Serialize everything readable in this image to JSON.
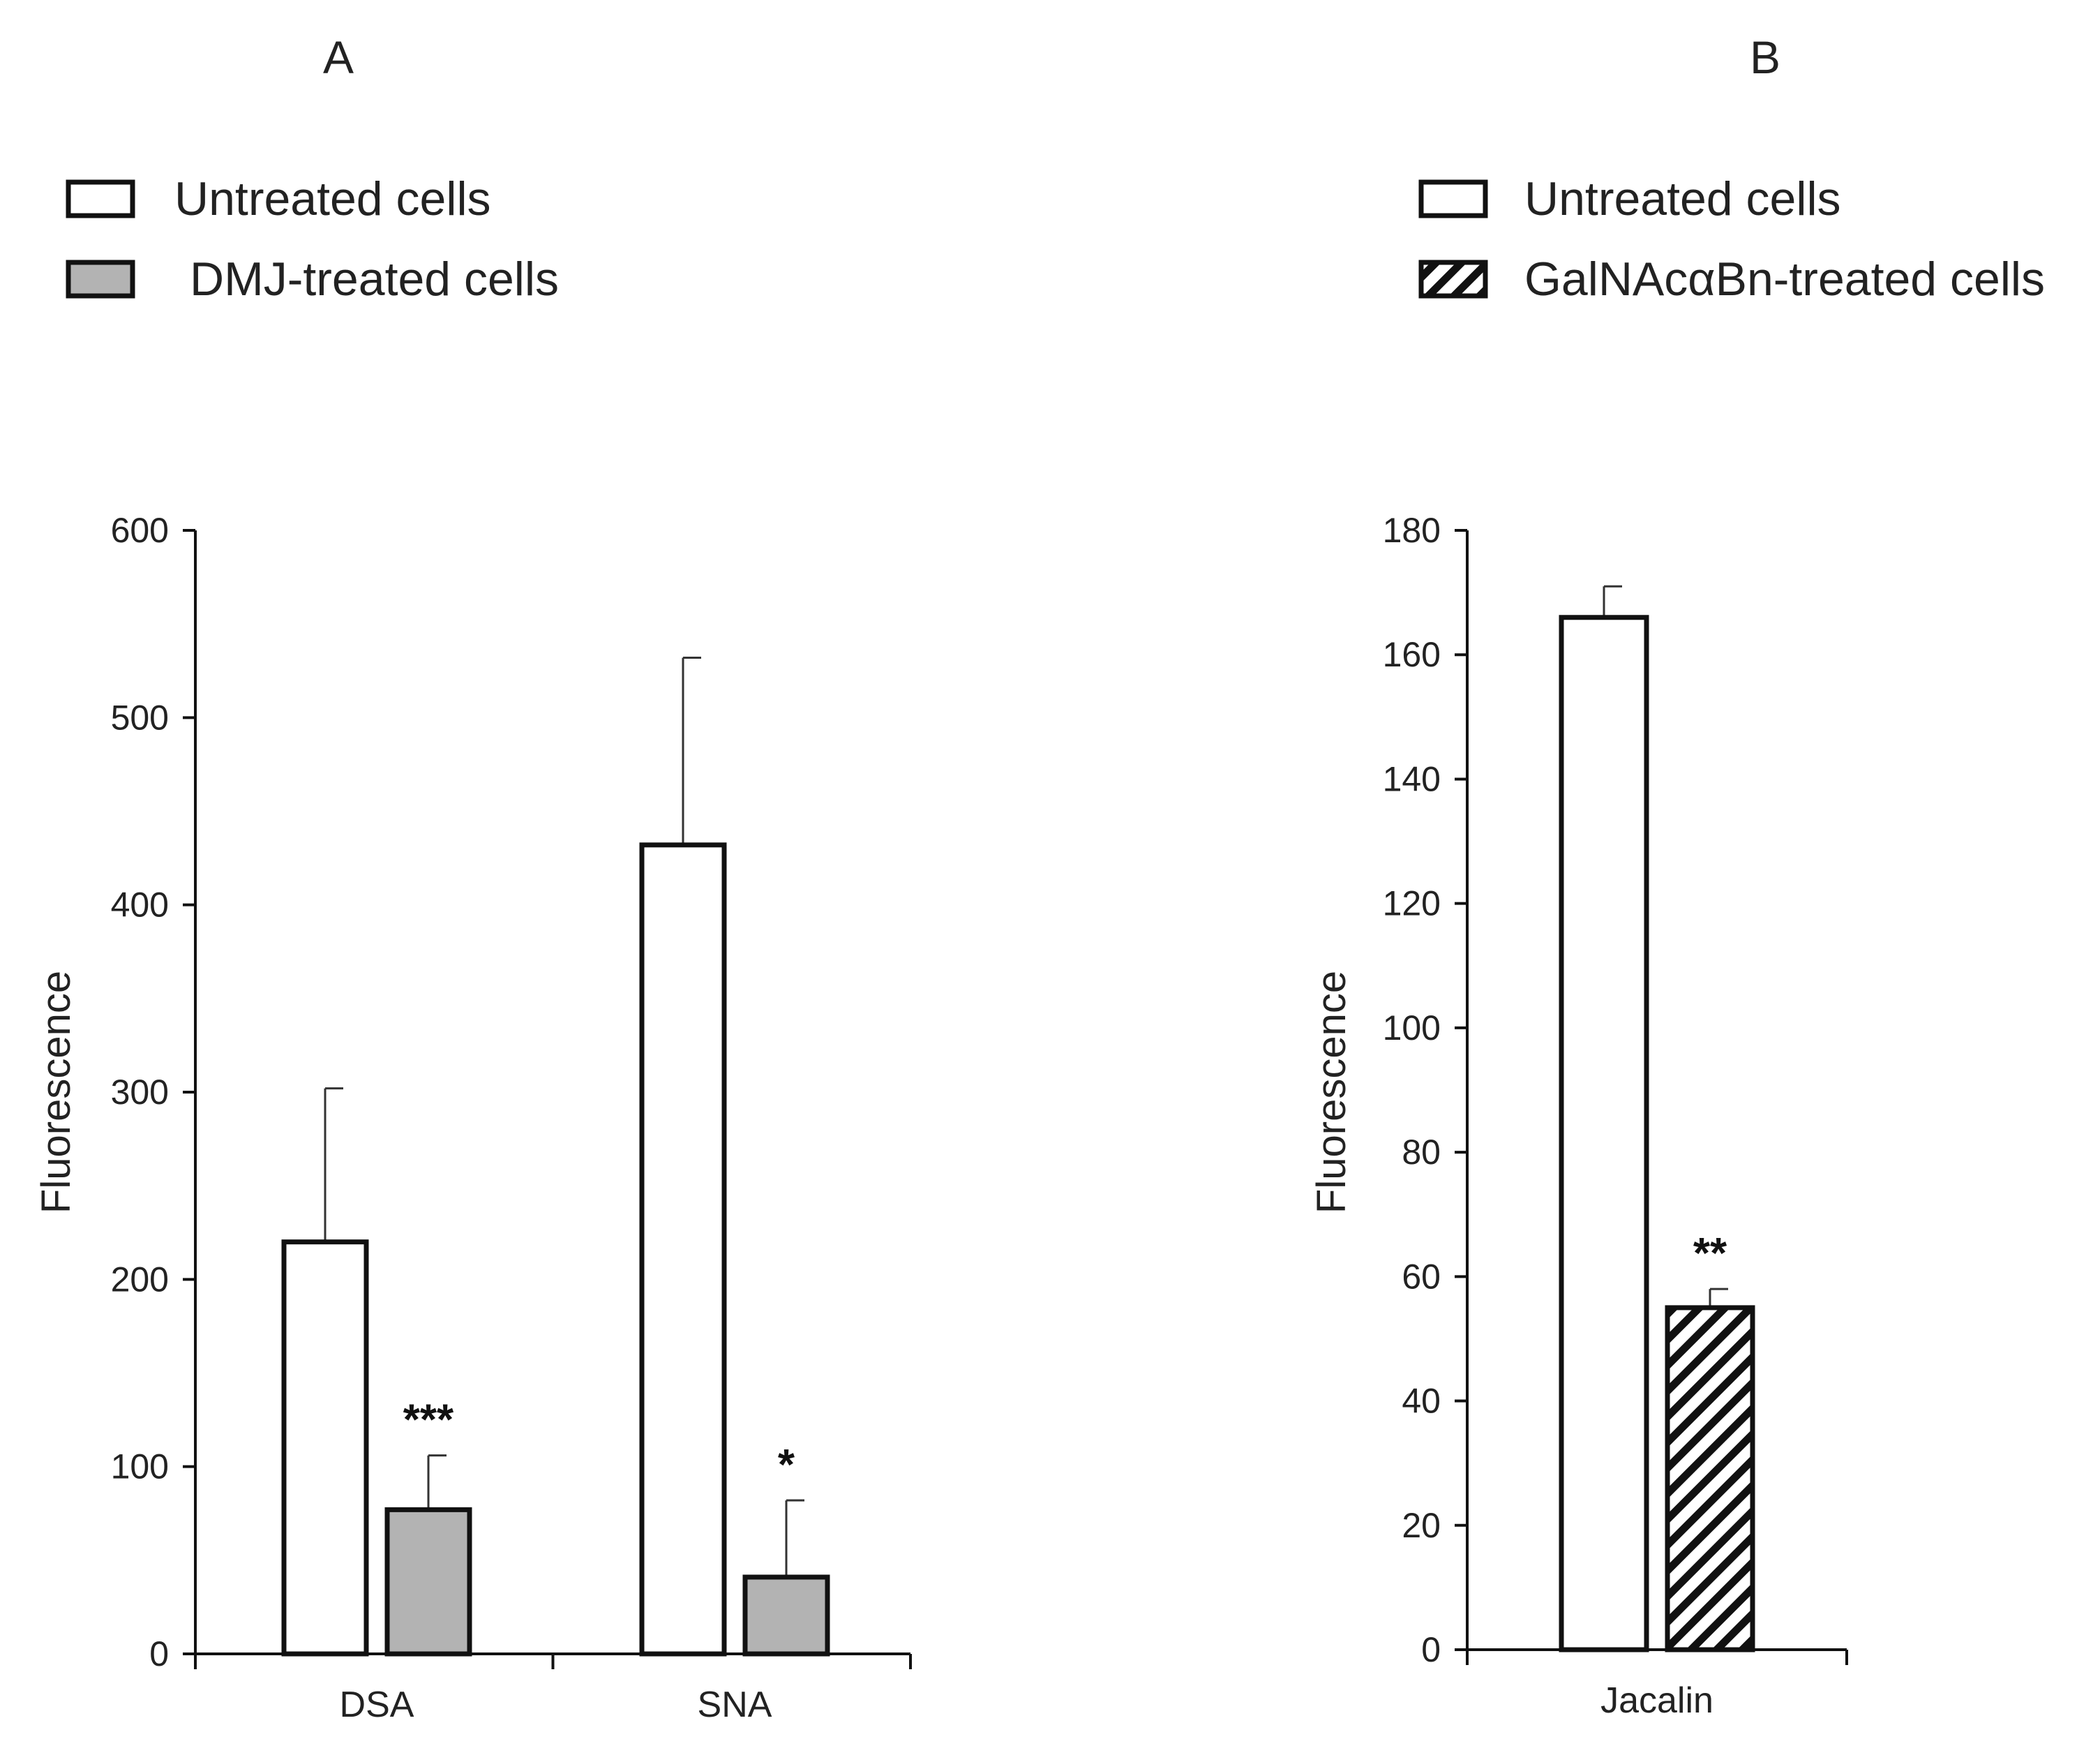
{
  "chart_data": [
    {
      "panel": "A",
      "type": "bar",
      "categories": [
        "DSA",
        "SNA"
      ],
      "series": [
        {
          "name": "Untreated cells",
          "values": [
            220,
            432
          ],
          "errors": [
            82,
            100
          ],
          "fill": "#ffffff",
          "pattern": "none"
        },
        {
          "name": "DMJ-treated cells",
          "values": [
            77,
            41
          ],
          "errors": [
            29,
            41
          ],
          "fill": "#b3b3b3",
          "pattern": "none"
        }
      ],
      "significance": [
        {
          "category": "DSA",
          "series": 1,
          "label": "***"
        },
        {
          "category": "SNA",
          "series": 1,
          "label": "*"
        }
      ],
      "ylabel": "Fluorescence",
      "ylim": [
        0,
        600
      ],
      "yticks": [
        "0",
        "100",
        "200",
        "300",
        "400",
        "500",
        "600"
      ],
      "legend_position": "top-left"
    },
    {
      "panel": "B",
      "type": "bar",
      "categories": [
        "Jacalin"
      ],
      "series": [
        {
          "name": "Untreated cells",
          "values": [
            166
          ],
          "errors": [
            5
          ],
          "fill": "#ffffff",
          "pattern": "none"
        },
        {
          "name": "GalNAcαBn-treated cells",
          "values": [
            55
          ],
          "errors": [
            3
          ],
          "fill": "#ffffff",
          "pattern": "hatch"
        }
      ],
      "significance": [
        {
          "category": "Jacalin",
          "series": 1,
          "label": "**"
        }
      ],
      "ylabel": "Fluorescence",
      "ylim": [
        0,
        180
      ],
      "yticks": [
        "0",
        "20",
        "40",
        "60",
        "80",
        "100",
        "120",
        "140",
        "160",
        "180"
      ],
      "legend_position": "top-left"
    }
  ]
}
